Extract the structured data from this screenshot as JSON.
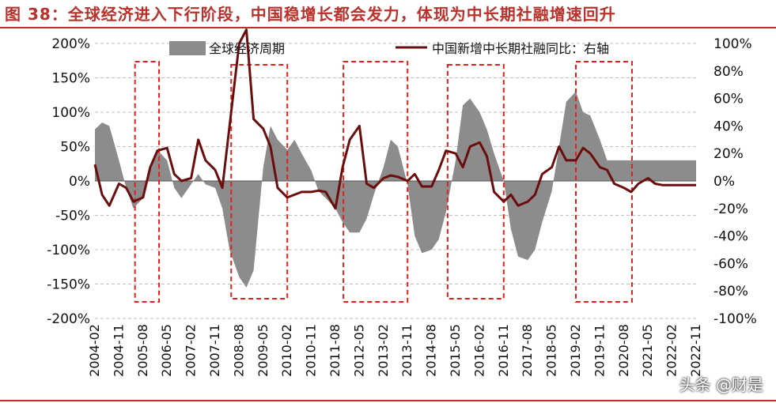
{
  "header": {
    "title": "图 38：全球经济进入下行阶段，中国稳增长都会发力，体现为中长期社融增速回升"
  },
  "watermark": "头条 @财是",
  "colors": {
    "title": "#b8312b",
    "area": "#8c8c8c",
    "line": "#6b0d0d",
    "box": "#e0201b",
    "grid": "#bfbfbf"
  },
  "chart_data": {
    "type": "area+line",
    "title": "",
    "categories": [
      "2004-02",
      "2004-11",
      "2005-08",
      "2006-05",
      "2007-02",
      "2007-11",
      "2008-08",
      "2009-05",
      "2010-02",
      "2010-11",
      "2011-08",
      "2012-05",
      "2013-02",
      "2013-11",
      "2014-08",
      "2015-05",
      "2016-02",
      "2016-11",
      "2017-08",
      "2018-05",
      "2019-02",
      "2019-11",
      "2020-08",
      "2021-05",
      "2022-02",
      "2022-11"
    ],
    "left_axis": {
      "ylim": [
        -200,
        200
      ],
      "ticks": [
        "-200%",
        "-150%",
        "-100%",
        "-50%",
        "0%",
        "50%",
        "100%",
        "150%",
        "200%"
      ],
      "tick_values": [
        -200,
        -150,
        -100,
        -50,
        0,
        50,
        100,
        150,
        200
      ]
    },
    "right_axis": {
      "ylim": [
        -100,
        100
      ],
      "ticks": [
        "-100%",
        "-80%",
        "-60%",
        "-40%",
        "-20%",
        "0%",
        "20%",
        "40%",
        "60%",
        "80%",
        "100%"
      ],
      "tick_values": [
        -100,
        -80,
        -60,
        -40,
        -20,
        0,
        20,
        40,
        60,
        80,
        100
      ]
    },
    "series": [
      {
        "name": "全球经济周期",
        "axis": "left",
        "style": "area",
        "x": [
          0,
          0.3,
          0.6,
          1,
          1.3,
          1.6,
          2,
          2.3,
          2.6,
          3,
          3.3,
          3.6,
          4,
          4.3,
          4.6,
          5,
          5.3,
          5.6,
          6,
          6.3,
          6.6,
          7,
          7.3,
          7.6,
          8,
          8.3,
          8.6,
          9,
          9.3,
          9.6,
          10,
          10.3,
          10.6,
          11,
          11.3,
          11.6,
          12,
          12.3,
          12.6,
          13,
          13.3,
          13.6,
          14,
          14.3,
          14.6,
          15,
          15.3,
          15.6,
          16,
          16.3,
          16.6,
          17,
          17.3,
          17.6,
          18,
          18.3,
          18.6,
          19,
          19.3,
          19.6,
          20,
          20.3,
          20.6,
          21,
          21.3,
          21.6,
          22,
          22.3,
          22.6,
          23,
          23.3,
          23.6,
          24,
          24.3,
          24.6,
          25
        ],
        "values": [
          75,
          85,
          80,
          30,
          -10,
          -40,
          -25,
          20,
          45,
          30,
          -10,
          -25,
          -5,
          10,
          -5,
          -10,
          -40,
          -100,
          -140,
          -155,
          -130,
          20,
          80,
          60,
          45,
          60,
          40,
          15,
          -15,
          -25,
          -40,
          -60,
          -75,
          -75,
          -55,
          -20,
          20,
          60,
          50,
          -5,
          -80,
          -105,
          -100,
          -85,
          -45,
          30,
          110,
          120,
          100,
          75,
          40,
          0,
          -70,
          -110,
          -115,
          -100,
          -60,
          -15,
          50,
          115,
          130,
          100,
          95,
          60,
          30,
          30,
          30,
          30,
          30,
          30,
          30,
          30,
          30,
          30,
          30,
          30
        ],
        "values_note": "area series ends at 2022-11"
      },
      {
        "name": "中国新增中长期社融同比：右轴",
        "axis": "right",
        "style": "line",
        "x": [
          0,
          0.3,
          0.6,
          1,
          1.3,
          1.6,
          2,
          2.3,
          2.6,
          3,
          3.3,
          3.6,
          4,
          4.3,
          4.6,
          5,
          5.3,
          5.6,
          6,
          6.3,
          6.6,
          7,
          7.3,
          7.6,
          8,
          8.3,
          8.6,
          9,
          9.3,
          9.6,
          10,
          10.3,
          10.6,
          11,
          11.3,
          11.6,
          12,
          12.3,
          12.6,
          13,
          13.3,
          13.6,
          14,
          14.3,
          14.6,
          15,
          15.3,
          15.6,
          16,
          16.3,
          16.6,
          17,
          17.3,
          17.6,
          18,
          18.3,
          18.6,
          19,
          19.3,
          19.6,
          20,
          20.3,
          20.6,
          21,
          21.3,
          21.6,
          22,
          22.3,
          22.6,
          23,
          23.3,
          23.6,
          24,
          24.3,
          24.6,
          25
        ],
        "values": [
          12,
          -10,
          -18,
          -2,
          -5,
          -15,
          -12,
          10,
          22,
          24,
          5,
          0,
          2,
          30,
          15,
          8,
          -5,
          40,
          100,
          110,
          45,
          38,
          25,
          -5,
          -12,
          -10,
          -8,
          -8,
          -7,
          -8,
          -20,
          10,
          30,
          40,
          -2,
          -5,
          2,
          4,
          3,
          0,
          5,
          -4,
          -4,
          8,
          22,
          20,
          10,
          25,
          28,
          18,
          -8,
          -15,
          -10,
          -18,
          -15,
          -10,
          5,
          10,
          25,
          15,
          15,
          24,
          20,
          10,
          8,
          -2,
          -5,
          -8,
          -2,
          2,
          -2,
          -3,
          -3,
          -3,
          -3,
          -3
        ],
        "values_note": "line series ends at 2022-11"
      }
    ],
    "legend": [
      "全球经济周期",
      "中国新增中长期社融同比：右轴"
    ],
    "legend_placement": "top",
    "highlight_boxes": [
      {
        "from": "2005-05",
        "to": "2006-02",
        "meaning": "downturn window"
      },
      {
        "from": "2008-05",
        "to": "2010-02",
        "meaning": "downturn window"
      },
      {
        "from": "2011-11",
        "to": "2013-11",
        "meaning": "downturn window"
      },
      {
        "from": "2015-02",
        "to": "2016-11",
        "meaning": "downturn window"
      },
      {
        "from": "2019-02",
        "to": "2020-11",
        "meaning": "downturn window"
      }
    ],
    "grid": true
  }
}
